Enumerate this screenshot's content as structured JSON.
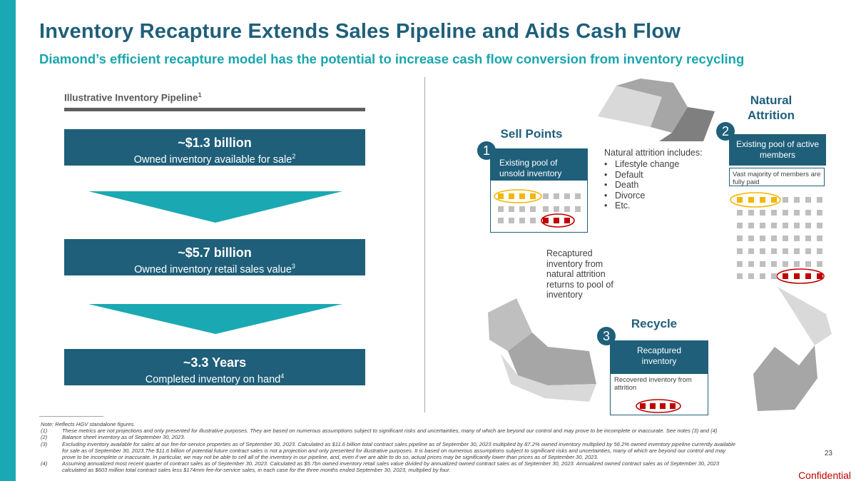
{
  "title": "Inventory Recapture Extends Sales Pipeline and Aids Cash Flow",
  "subtitle": "Diamond’s efficient recapture model has the potential to increase cash flow conversion from inventory recycling",
  "pipeline": {
    "label": "Illustrative Inventory Pipeline",
    "label_sup": "1",
    "boxes": [
      {
        "big": "~$1.3 billion",
        "small": "Owned inventory available for sale",
        "sup": "2"
      },
      {
        "big": "~$5.7 billion",
        "small": "Owned inventory retail sales value",
        "sup": "3"
      },
      {
        "big": "~3.3 Years",
        "small": "Completed inventory on hand",
        "sup": "4"
      }
    ]
  },
  "cycle": {
    "sell_points": {
      "header": "Sell Points",
      "number": "1",
      "box": "Existing pool of unsold inventory"
    },
    "natural_attrition": {
      "header": "Natural Attrition",
      "number": "2",
      "box": "Existing pool of active members",
      "note": "Vast majority of members are fully paid"
    },
    "recycle": {
      "header": "Recycle",
      "number": "3",
      "box": "Recaptured inventory",
      "note": "Recovered inventory from attrition"
    },
    "attrition_intro": "Natural attrition includes:",
    "attrition_items": [
      "Lifestyle change",
      "Default",
      "Death",
      "Divorce",
      "Etc."
    ],
    "recaptured_text": "Recaptured inventory from natural attrition returns to pool of inventory"
  },
  "colors": {
    "navy": "#1f5f7a",
    "teal": "#1aa9b3",
    "gold": "#f2b705",
    "red": "#c00000",
    "gray": "#bfbfbf"
  },
  "footnotes": {
    "note": "Note: Reflects HGV standalone figures.",
    "items": [
      {
        "num": "(1)",
        "text": "These metrics are not projections and only presented for illustrative purposes. They are based on numerous assumptions subject to significant risks and uncertainties, many of which are beyond our control and may prove to be incomplete or inaccurate. See notes (3) and (4)"
      },
      {
        "num": "(2)",
        "text": "Balance sheet inventory as of September 30, 2023."
      },
      {
        "num": "(3)",
        "text": "Excluding inventory available for sales at our fee-for-service properties as of September 30, 2023. Calculated as $11.6 billion total contract sales pipeline as of September 30, 2023 multiplied by 87.2% owned inventory multiplied by 56.2% owned inventory pipeline currently available for sale as of September 30, 2023.The $11.6 billion of potential future contract sales is not a projection and only presented for illustrative purposes. It is based on numerous assumptions subject to significant risks and uncertainties, many of which are beyond our control and may prove to be incomplete or inaccurate. In particular, we may not be able to sell all of the inventory in our pipeline, and, even if we are able to do so, actual prices may be significantly lower than prices as of September 30, 2023."
      },
      {
        "num": "(4)",
        "text": "Assuming annualized most recent quarter of contract sales as of September 30, 2023. Calculated as $5.7bn owned inventory retail sales value divided by annualized owned contract sales as of September 30, 2023. Annualized owned contract sales as of September 30, 2023 calculated as $603 million total contract sales less $174mm fee-for-service sales, in each case for the three months ended September 30, 2023, multiplied by four."
      }
    ]
  },
  "page_number": "23",
  "confidential": "Confidential"
}
